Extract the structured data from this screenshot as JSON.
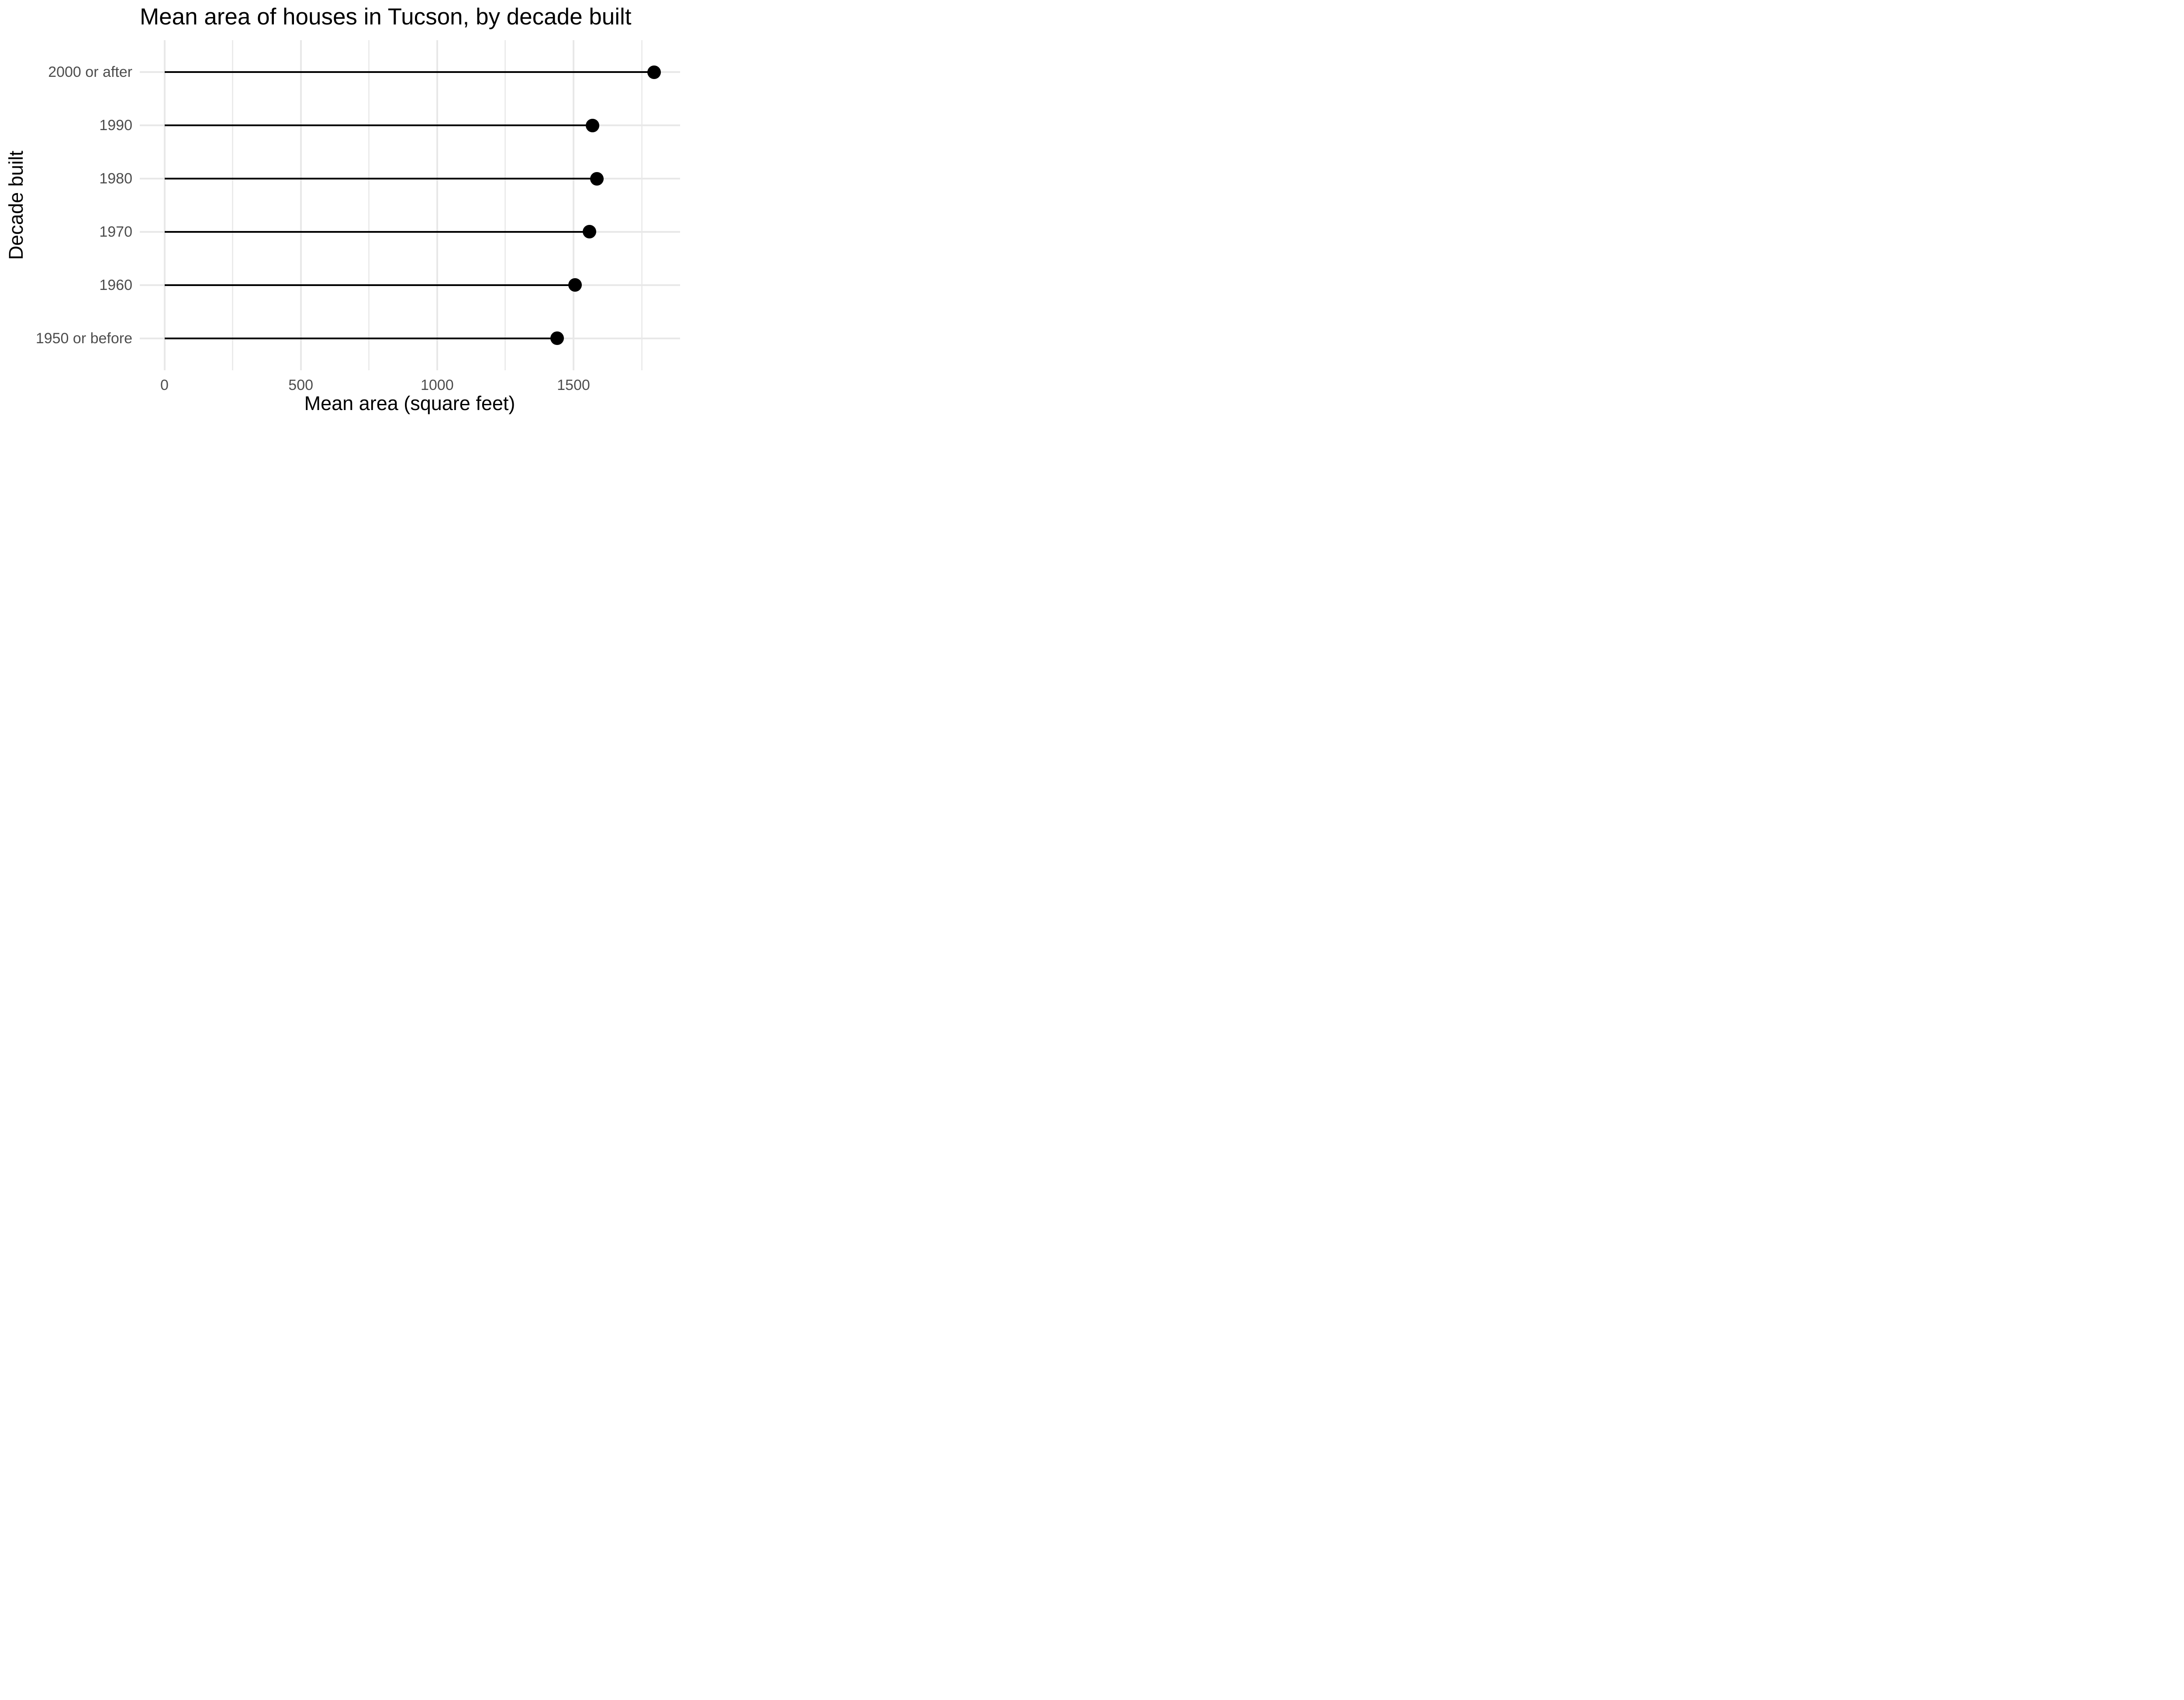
{
  "chart_data": {
    "type": "bar",
    "variant": "horizontal-lollipop",
    "title": "Mean area of houses in Tucson, by decade built",
    "xlabel": "Mean area (square feet)",
    "ylabel": "Decade built",
    "categories": [
      "2000 or after",
      "1990",
      "1980",
      "1970",
      "1960",
      "1950 or before"
    ],
    "values": [
      1795,
      1570,
      1586,
      1558,
      1506,
      1440
    ],
    "x_ticks": [
      0,
      500,
      1000,
      1500
    ],
    "x_minor_ticks": [
      250,
      750,
      1250,
      1750
    ],
    "xlim": [
      -90,
      1890
    ],
    "grid": true,
    "legend": false,
    "orientation": "horizontal",
    "point_shape": "filled-circle"
  },
  "colors": {
    "background": "#FFFFFF",
    "title_text": "#000000",
    "axis_title_text": "#000000",
    "tick_label_text": "#4D4D4D",
    "grid_major": "#E8E8E8",
    "grid_minor": "#EBEBEB",
    "point": "#000000",
    "stem": "#000000"
  }
}
